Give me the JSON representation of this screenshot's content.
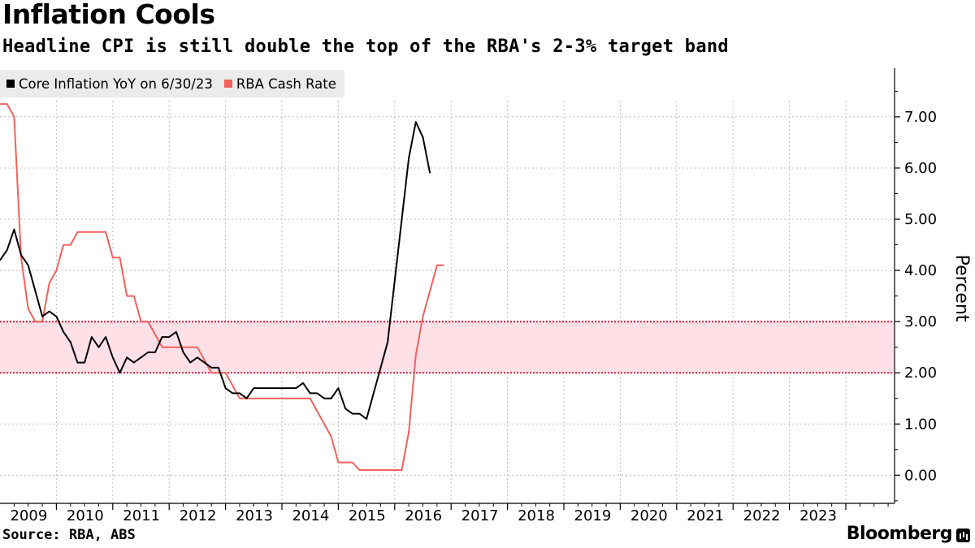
{
  "chart_data": {
    "type": "line",
    "title": "Inflation Cools",
    "subtitle": "Headline CPI is still double the top of the RBA's 2-3% target band",
    "source": "Source: RBA, ABS",
    "brand": "Bloomberg",
    "ylabel": "Percent",
    "ylim": [
      -0.55,
      7.95
    ],
    "xlim": [
      2008.0,
      2023.85
    ],
    "x_tick_labels": [
      "2009",
      "2010",
      "2011",
      "2012",
      "2013",
      "2014",
      "2015",
      "2016",
      "2017",
      "2018",
      "2019",
      "2020",
      "2021",
      "2022",
      "2023"
    ],
    "x_tick_positions": [
      2009,
      2010,
      2011,
      2012,
      2013,
      2014,
      2015,
      2016,
      2017,
      2018,
      2019,
      2020,
      2021,
      2022,
      2023
    ],
    "x_grid_positions": [
      2009,
      2010,
      2011,
      2012,
      2013,
      2014,
      2015,
      2016,
      2017,
      2018,
      2019,
      2020,
      2021,
      2022,
      2023
    ],
    "y_ticks": [
      0,
      1,
      2,
      3,
      4,
      5,
      6,
      7
    ],
    "y_tick_labels": [
      "0.00",
      "1.00",
      "2.00",
      "3.00",
      "4.00",
      "5.00",
      "6.00",
      "7.00"
    ],
    "grid": true,
    "legend_position": "top-left",
    "target_band": {
      "low": 2.0,
      "high": 3.0,
      "color": "#ffe0e6",
      "line_color": "#d9304a"
    },
    "series": [
      {
        "name": "Core Inflation YoY on 6/30/23",
        "color": "#000000",
        "points": [
          [
            2008.0,
            4.2
          ],
          [
            2008.125,
            4.4
          ],
          [
            2008.25,
            4.8
          ],
          [
            2008.375,
            4.3
          ],
          [
            2008.5,
            4.1
          ],
          [
            2008.625,
            3.6
          ],
          [
            2008.75,
            3.1
          ],
          [
            2008.875,
            3.2
          ],
          [
            2009.0,
            3.1
          ],
          [
            2009.125,
            2.8
          ],
          [
            2009.25,
            2.6
          ],
          [
            2009.375,
            2.2
          ],
          [
            2009.5,
            2.2
          ],
          [
            2009.625,
            2.7
          ],
          [
            2009.75,
            2.5
          ],
          [
            2009.875,
            2.7
          ],
          [
            2010.0,
            2.3
          ],
          [
            2010.125,
            2.0
          ],
          [
            2010.25,
            2.3
          ],
          [
            2010.375,
            2.2
          ],
          [
            2010.5,
            2.3
          ],
          [
            2010.625,
            2.4
          ],
          [
            2010.75,
            2.4
          ],
          [
            2010.875,
            2.7
          ],
          [
            2011.0,
            2.7
          ],
          [
            2011.125,
            2.8
          ],
          [
            2011.25,
            2.4
          ],
          [
            2011.375,
            2.2
          ],
          [
            2011.5,
            2.3
          ],
          [
            2011.625,
            2.2
          ],
          [
            2011.75,
            2.1
          ],
          [
            2011.875,
            2.1
          ],
          [
            2012.0,
            1.7
          ],
          [
            2012.125,
            1.6
          ],
          [
            2012.25,
            1.6
          ],
          [
            2012.375,
            1.5
          ],
          [
            2012.5,
            1.7
          ],
          [
            2012.625,
            1.7
          ],
          [
            2012.75,
            1.7
          ],
          [
            2012.875,
            1.7
          ],
          [
            2013.0,
            1.7
          ],
          [
            2013.125,
            1.7
          ],
          [
            2013.25,
            1.7
          ],
          [
            2013.375,
            1.8
          ],
          [
            2013.5,
            1.6
          ],
          [
            2013.625,
            1.6
          ],
          [
            2013.75,
            1.5
          ],
          [
            2013.875,
            1.5
          ],
          [
            2014.0,
            1.7
          ],
          [
            2014.125,
            1.3
          ],
          [
            2014.25,
            1.2
          ],
          [
            2014.375,
            1.2
          ],
          [
            2014.5,
            1.1
          ],
          [
            2014.625,
            1.6
          ],
          [
            2014.75,
            2.1
          ],
          [
            2014.875,
            2.6
          ],
          [
            2015.0,
            3.8
          ],
          [
            2015.125,
            5.0
          ],
          [
            2015.25,
            6.2
          ],
          [
            2015.375,
            6.9
          ],
          [
            2015.5,
            6.6
          ],
          [
            2015.625,
            5.9
          ]
        ]
      },
      {
        "name": "RBA Cash Rate",
        "color": "#f0625f",
        "points": [
          [
            2008.0,
            7.25
          ],
          [
            2008.125,
            7.25
          ],
          [
            2008.25,
            7.0
          ],
          [
            2008.375,
            4.25
          ],
          [
            2008.5,
            3.25
          ],
          [
            2008.625,
            3.0
          ],
          [
            2008.75,
            3.0
          ],
          [
            2008.875,
            3.75
          ],
          [
            2009.0,
            4.0
          ],
          [
            2009.125,
            4.5
          ],
          [
            2009.25,
            4.5
          ],
          [
            2009.375,
            4.75
          ],
          [
            2009.5,
            4.75
          ],
          [
            2009.625,
            4.75
          ],
          [
            2009.75,
            4.75
          ],
          [
            2009.875,
            4.75
          ],
          [
            2010.0,
            4.25
          ],
          [
            2010.125,
            4.25
          ],
          [
            2010.25,
            3.5
          ],
          [
            2010.375,
            3.5
          ],
          [
            2010.5,
            3.0
          ],
          [
            2010.625,
            3.0
          ],
          [
            2010.75,
            2.75
          ],
          [
            2010.875,
            2.5
          ],
          [
            2011.0,
            2.5
          ],
          [
            2011.125,
            2.5
          ],
          [
            2011.25,
            2.5
          ],
          [
            2011.375,
            2.5
          ],
          [
            2011.5,
            2.5
          ],
          [
            2011.625,
            2.25
          ],
          [
            2011.75,
            2.0
          ],
          [
            2011.875,
            2.0
          ],
          [
            2012.0,
            2.0
          ],
          [
            2012.125,
            1.75
          ],
          [
            2012.25,
            1.5
          ],
          [
            2012.375,
            1.5
          ],
          [
            2012.5,
            1.5
          ],
          [
            2012.625,
            1.5
          ],
          [
            2012.75,
            1.5
          ],
          [
            2012.875,
            1.5
          ],
          [
            2013.0,
            1.5
          ],
          [
            2013.125,
            1.5
          ],
          [
            2013.25,
            1.5
          ],
          [
            2013.375,
            1.5
          ],
          [
            2013.5,
            1.5
          ],
          [
            2013.625,
            1.25
          ],
          [
            2013.75,
            1.0
          ],
          [
            2013.875,
            0.75
          ],
          [
            2014.0,
            0.25
          ],
          [
            2014.125,
            0.25
          ],
          [
            2014.25,
            0.25
          ],
          [
            2014.375,
            0.1
          ],
          [
            2014.5,
            0.1
          ],
          [
            2014.625,
            0.1
          ],
          [
            2014.75,
            0.1
          ],
          [
            2014.875,
            0.1
          ],
          [
            2015.0,
            0.1
          ],
          [
            2015.125,
            0.1
          ],
          [
            2015.25,
            0.85
          ],
          [
            2015.375,
            2.35
          ],
          [
            2015.5,
            3.1
          ],
          [
            2015.625,
            3.6
          ],
          [
            2015.75,
            4.1
          ],
          [
            2015.875,
            4.1
          ]
        ]
      }
    ]
  }
}
